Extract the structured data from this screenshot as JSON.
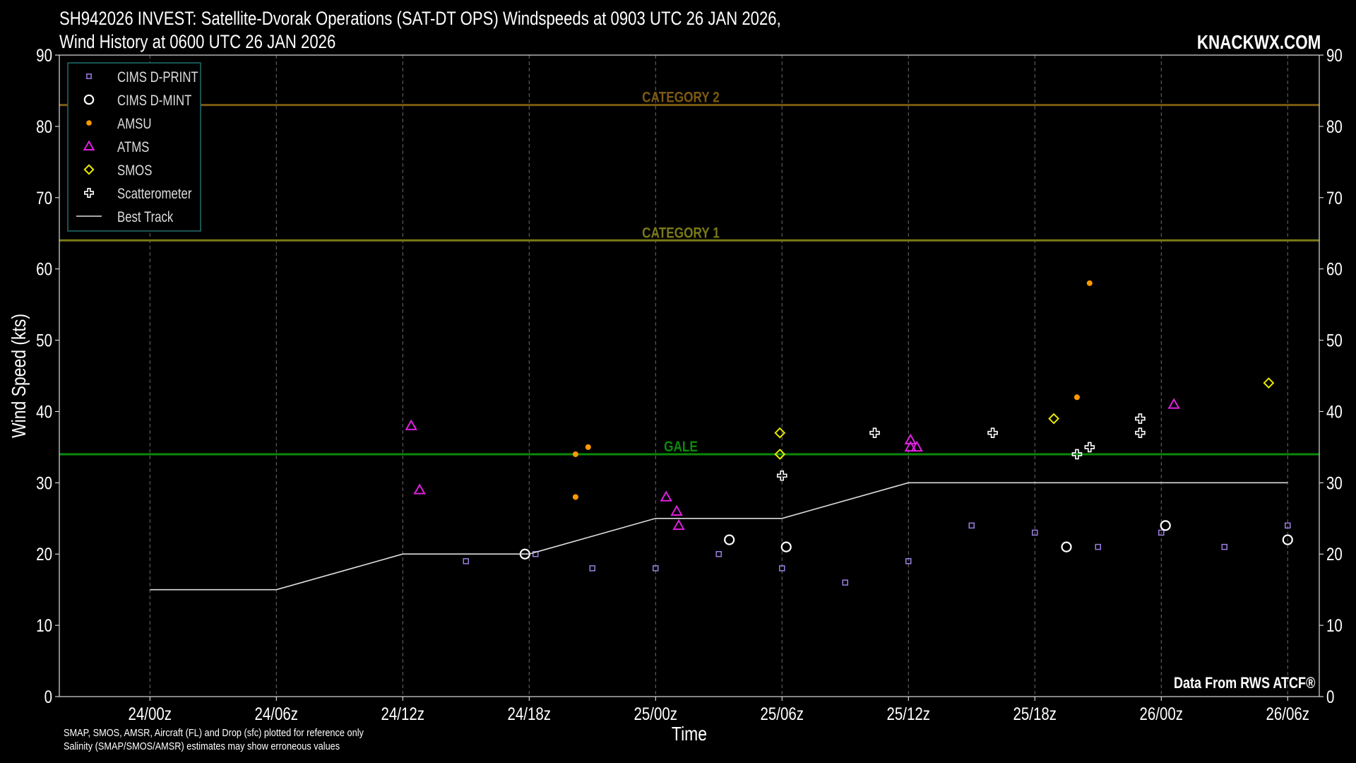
{
  "title_line1": "SH942026 INVEST: Satellite-Dvorak Operations (SAT-DT OPS) Windspeeds at 0903 UTC 26 JAN 2026,",
  "title_line2": "Wind History at 0600 UTC 26 JAN 2026",
  "brand": "KNACKWX.COM",
  "source_note": "Data From RWS ATCF®",
  "footnote_line1": "SMAP, SMOS, AMSR, Aircraft (FL) and Drop (sfc) plotted for reference only",
  "footnote_line2": "Salinity (SMAP/SMOS/AMSR) estimates may show erroneous values",
  "colors": {
    "background": "#000000",
    "gale": "#0a8a0a",
    "category1": "#7a7a18",
    "category2": "#7d5a10",
    "cims_dprint": "#9a7fe0",
    "cims_dmint": "#ffffff",
    "amsu": "#ff9900",
    "atms": "#e020e0",
    "smos": "#e8e800",
    "scatterometer": "#ffffff",
    "best_track": "#dddddd"
  },
  "chart_data": {
    "type": "scatter",
    "xlabel": "Time",
    "ylabel": "Wind Speed (kts)",
    "ylim": [
      0,
      90
    ],
    "yticks": [
      0,
      10,
      20,
      30,
      40,
      50,
      60,
      70,
      80,
      90
    ],
    "x_unit": "hours since 24/00z",
    "xlim": [
      -4.3,
      55.5
    ],
    "xticks": [
      {
        "x": 0,
        "label": "24/00z"
      },
      {
        "x": 6,
        "label": "24/06z"
      },
      {
        "x": 12,
        "label": "24/12z"
      },
      {
        "x": 18,
        "label": "24/18z"
      },
      {
        "x": 24,
        "label": "25/00z"
      },
      {
        "x": 30,
        "label": "25/06z"
      },
      {
        "x": 36,
        "label": "25/12z"
      },
      {
        "x": 42,
        "label": "25/18z"
      },
      {
        "x": 48,
        "label": "26/00z"
      },
      {
        "x": 54,
        "label": "26/06z"
      }
    ],
    "grid": "vertical dashed",
    "legend_position": "top-left",
    "thresholds": [
      {
        "name": "GALE",
        "value": 34,
        "color": "#0a8a0a"
      },
      {
        "name": "CATEGORY 1",
        "value": 64,
        "color": "#7a7a18"
      },
      {
        "name": "CATEGORY 2",
        "value": 83,
        "color": "#7d5a10"
      }
    ],
    "series": [
      {
        "name": "CIMS D-PRINT",
        "marker": "square",
        "color": "#9a7fe0",
        "points": [
          [
            15,
            19
          ],
          [
            18.3,
            20
          ],
          [
            21,
            18
          ],
          [
            24,
            18
          ],
          [
            27,
            20
          ],
          [
            30,
            18
          ],
          [
            33,
            16
          ],
          [
            36,
            19
          ],
          [
            39,
            24
          ],
          [
            42,
            23
          ],
          [
            45,
            21
          ],
          [
            48,
            23
          ],
          [
            51,
            21
          ],
          [
            54,
            24
          ]
        ]
      },
      {
        "name": "CIMS D-MINT",
        "marker": "circle",
        "color": "#ffffff",
        "points": [
          [
            17.8,
            20
          ],
          [
            27.5,
            22
          ],
          [
            30.2,
            21
          ],
          [
            43.5,
            21
          ],
          [
            48.2,
            24
          ],
          [
            54,
            22
          ]
        ]
      },
      {
        "name": "AMSU",
        "marker": "dot",
        "color": "#ff9900",
        "points": [
          [
            20.2,
            34
          ],
          [
            20.2,
            28
          ],
          [
            20.8,
            35
          ],
          [
            44,
            42
          ],
          [
            44.6,
            58
          ]
        ]
      },
      {
        "name": "ATMS",
        "marker": "triangle",
        "color": "#e020e0",
        "points": [
          [
            12.4,
            38
          ],
          [
            12.8,
            29
          ],
          [
            24.5,
            28
          ],
          [
            25,
            26
          ],
          [
            25.1,
            24
          ],
          [
            36.1,
            36
          ],
          [
            36.1,
            35
          ],
          [
            36.4,
            35
          ],
          [
            48.6,
            41
          ]
        ]
      },
      {
        "name": "SMOS",
        "marker": "diamond",
        "color": "#e8e800",
        "points": [
          [
            29.9,
            37
          ],
          [
            29.9,
            34
          ],
          [
            42.9,
            39
          ],
          [
            53.1,
            44
          ]
        ]
      },
      {
        "name": "Scatterometer",
        "marker": "cross",
        "color": "#ffffff",
        "points": [
          [
            30,
            31
          ],
          [
            34.4,
            37
          ],
          [
            40,
            37
          ],
          [
            44,
            34
          ],
          [
            44.6,
            35
          ],
          [
            47,
            39
          ],
          [
            47,
            37
          ]
        ]
      },
      {
        "name": "Best Track",
        "marker": "line",
        "color": "#dddddd",
        "points": [
          [
            0,
            15
          ],
          [
            6,
            15
          ],
          [
            12,
            20
          ],
          [
            18,
            20
          ],
          [
            24,
            25
          ],
          [
            30,
            25
          ],
          [
            36,
            30
          ],
          [
            42,
            30
          ],
          [
            48,
            30
          ],
          [
            54,
            30
          ]
        ]
      }
    ]
  }
}
